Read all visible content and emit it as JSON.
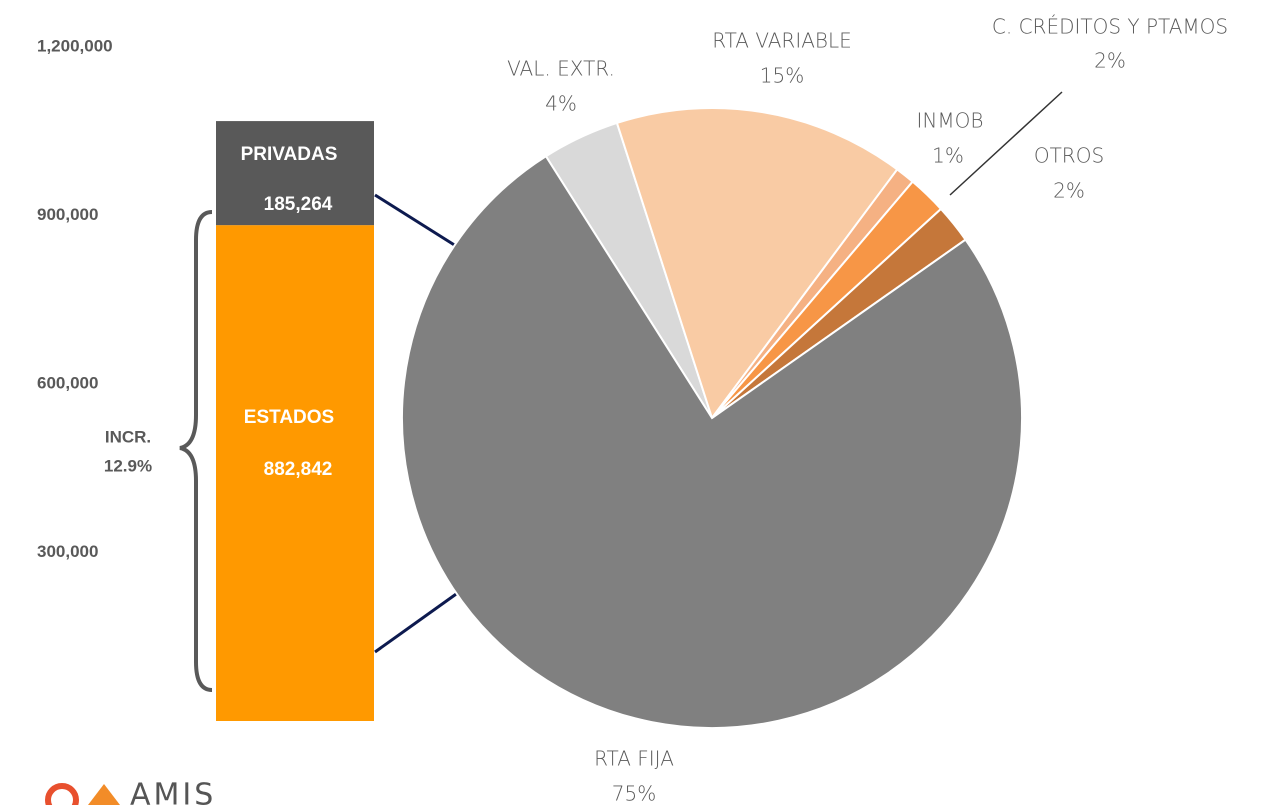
{
  "chart_data": [
    {
      "type": "stacked_bar",
      "series": [
        {
          "name": "ESTADOS",
          "color": "#ff9900",
          "values": [
            882842
          ],
          "value_labels": [
            "882,842"
          ]
        },
        {
          "name": "PRIVADAS",
          "color": "#595959",
          "values": [
            185264
          ],
          "value_labels": [
            "185,264"
          ]
        }
      ],
      "ylim": [
        0,
        1200000
      ],
      "yticks": [
        {
          "value": 300000,
          "label": "300,000"
        },
        {
          "value": 600000,
          "label": "600,000"
        },
        {
          "value": 900000,
          "label": "900,000"
        },
        {
          "value": 1200000,
          "label": "1,200,000"
        }
      ],
      "annotation": [
        "INCR.",
        "12.9%"
      ]
    },
    {
      "type": "pie",
      "categories": [
        "VAL. EXTR.",
        "RTA VARIABLE",
        "INMOB",
        "C. CRÉDITOS Y PTAMOS",
        "OTROS",
        "RTA FIJA"
      ],
      "values": [
        4,
        15,
        1,
        2,
        2,
        75
      ],
      "value_labels": [
        "4%",
        "15%",
        "1%",
        "2%",
        "2%",
        "75%"
      ],
      "colors": [
        "#d9d9d9",
        "#f9cba4",
        "#f5b183",
        "#f79646",
        "#c5773a",
        "#808080"
      ]
    }
  ],
  "logo": "AMIS"
}
